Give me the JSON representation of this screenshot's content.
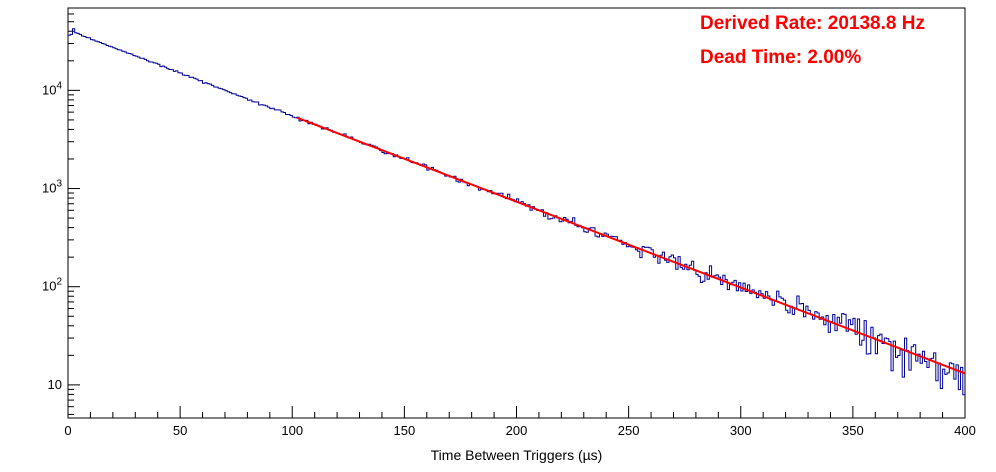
{
  "chart_data": {
    "type": "line",
    "subtype": "step-histogram-logy-with-exponential-fit",
    "title": "",
    "xlabel": "Time Between Triggers (µs)",
    "ylabel": "",
    "xlim": [
      0,
      400
    ],
    "ylim": [
      4.6,
      69000
    ],
    "yscale": "log",
    "grid": false,
    "legend": null,
    "background": "#ffffff",
    "axis_color": "#000000",
    "x_ticks": [
      {
        "value": 0,
        "label": "0"
      },
      {
        "value": 50,
        "label": "50"
      },
      {
        "value": 100,
        "label": "100"
      },
      {
        "value": 150,
        "label": "150"
      },
      {
        "value": 200,
        "label": "200"
      },
      {
        "value": 250,
        "label": "250"
      },
      {
        "value": 300,
        "label": "300"
      },
      {
        "value": 350,
        "label": "350"
      },
      {
        "value": 400,
        "label": "400"
      }
    ],
    "x_minor_step": 10,
    "y_ticks": [
      {
        "value": 10,
        "mantissa": "10",
        "exponent": ""
      },
      {
        "value": 100,
        "mantissa": "10",
        "exponent": "2"
      },
      {
        "value": 1000,
        "mantissa": "10",
        "exponent": "3"
      },
      {
        "value": 10000,
        "mantissa": "10",
        "exponent": "4"
      }
    ],
    "series": [
      {
        "name": "time-between-triggers-histogram",
        "type": "step",
        "color": "#000099",
        "line_width": 1,
        "model": {
          "amplitude": 41200,
          "decay_per_us": 0.0201388,
          "n_bins": 400,
          "bin_width_us": 1,
          "noise": "poisson",
          "noise_scale": 1.2,
          "seed": 20139,
          "head_profile": [
            0.88,
            0.92,
            1.07,
            1.02
          ]
        }
      },
      {
        "name": "exponential-fit",
        "type": "line",
        "color": "#ff0000",
        "line_width": 2,
        "x_start": 102,
        "x_end": 400,
        "amplitude": 41200,
        "decay_per_us": 0.0201388
      }
    ],
    "approx_points": {
      "x": [
        0,
        25,
        50,
        75,
        100,
        125,
        150,
        175,
        200,
        225,
        250,
        275,
        300,
        325,
        350,
        375,
        400
      ],
      "y": [
        41200,
        24900,
        15050,
        9100,
        5500,
        3325,
        2010,
        1215,
        734,
        444,
        268,
        162,
        98,
        59,
        36,
        22,
        13
      ]
    },
    "annotations": [
      {
        "text": "Derived Rate: 20138.8 Hz",
        "color": "#ff0000"
      },
      {
        "text": "Dead Time: 2.00%",
        "color": "#ff0000"
      }
    ]
  }
}
